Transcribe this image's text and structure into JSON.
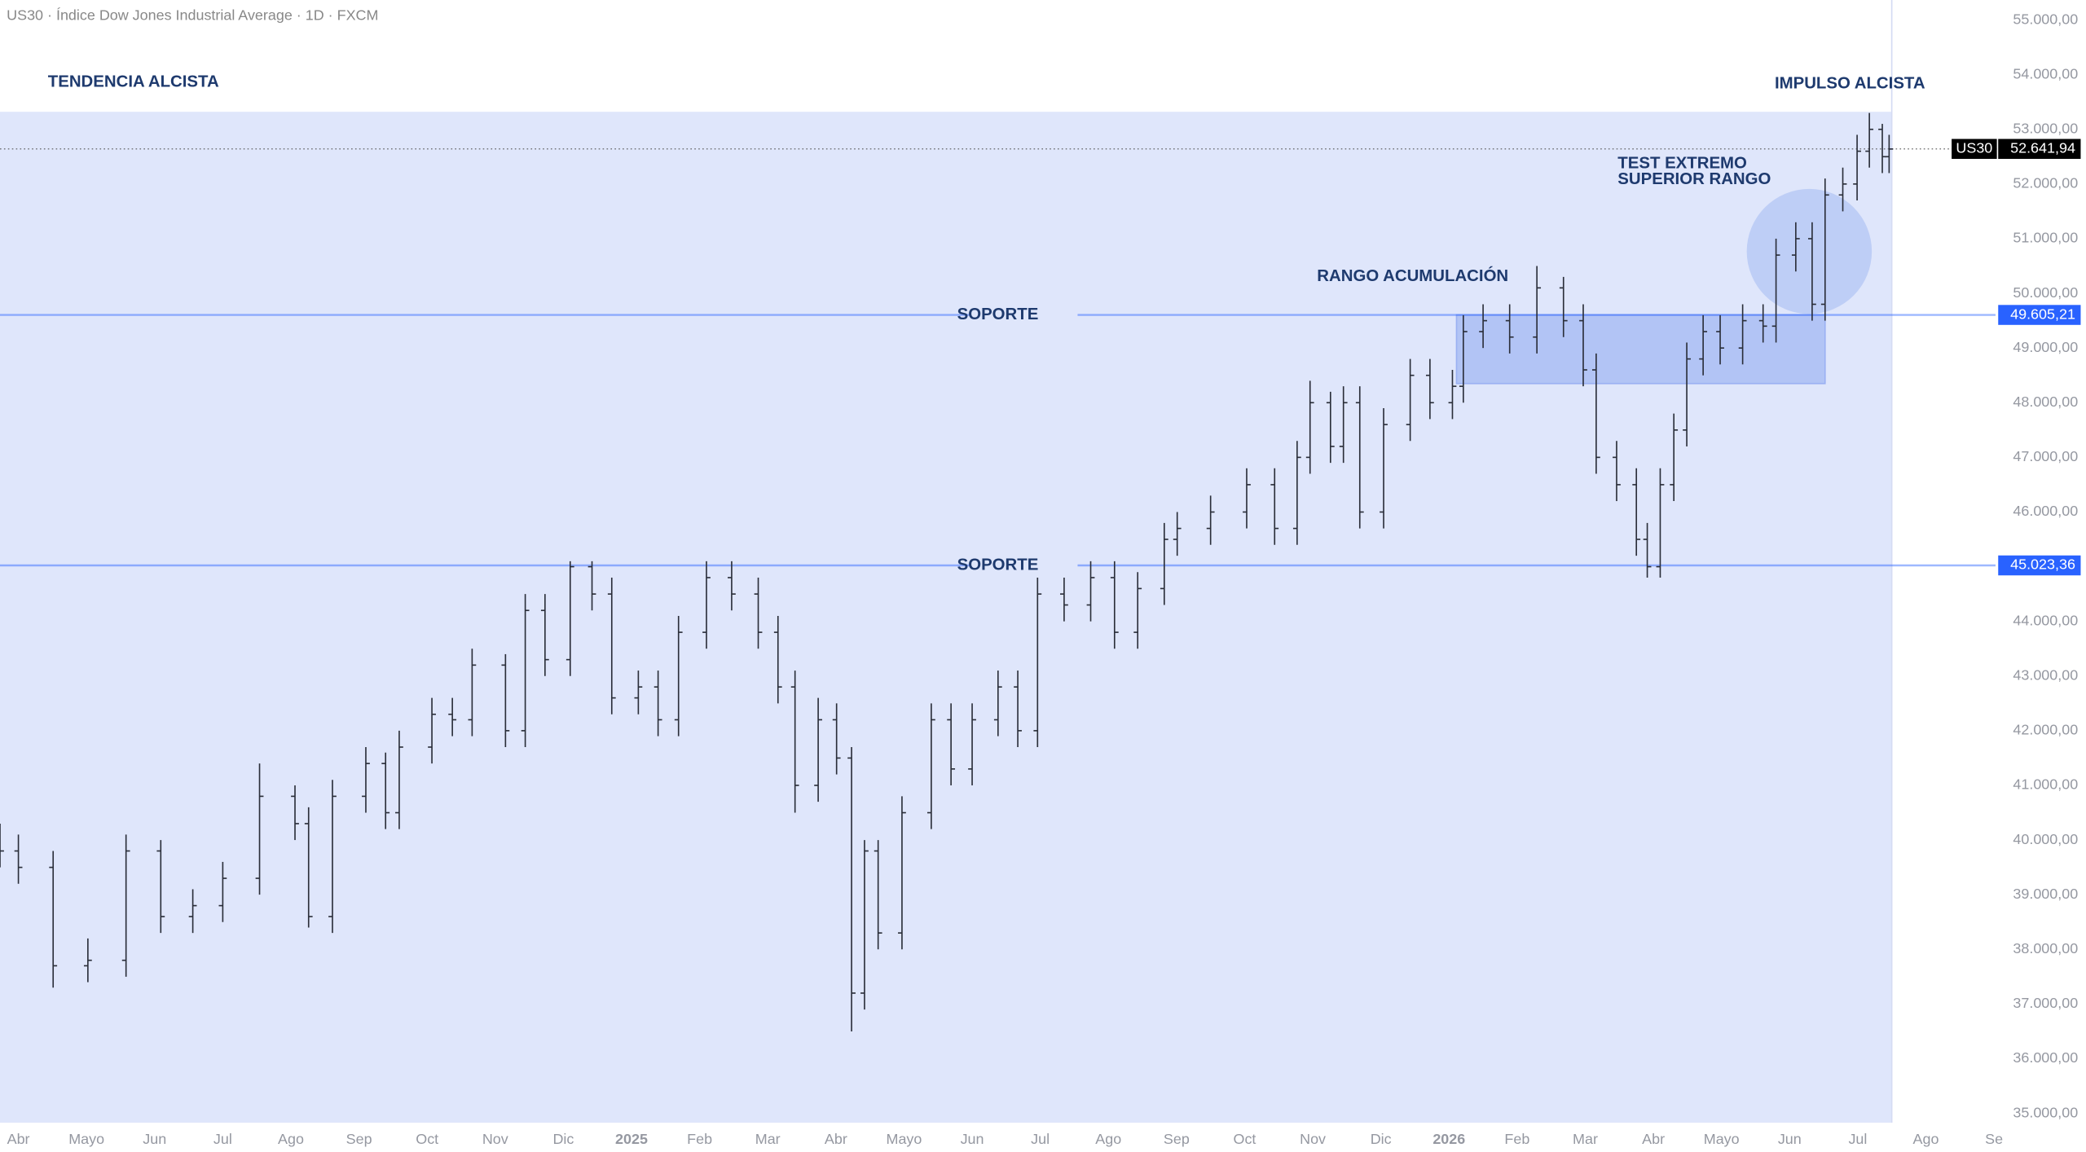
{
  "chart_data": {
    "type": "ohlc",
    "title": "US30 · Índice Dow Jones Industrial Average · 1D · FXCM",
    "color": "#2a2e39",
    "annotations": [
      "TENDENCIA ALCISTA",
      "IMPULSO ALCISTA",
      "TEST EXTREMO",
      "SUPERIOR RANGO",
      "RANGO ACUMULACIÓN"
    ],
    "xlim": [
      -0.27,
      30.35
    ],
    "xticks": [
      {
        "value": 0,
        "label": "Abr"
      },
      {
        "value": 1,
        "label": "Mayo"
      },
      {
        "value": 2,
        "label": "Jun"
      },
      {
        "value": 3,
        "label": "Jul"
      },
      {
        "value": 4,
        "label": "Ago"
      },
      {
        "value": 5,
        "label": "Sep"
      },
      {
        "value": 6,
        "label": "Oct"
      },
      {
        "value": 7,
        "label": "Nov"
      },
      {
        "value": 8,
        "label": "Dic"
      },
      {
        "value": 9,
        "label": "2025"
      },
      {
        "value": 10,
        "label": "Feb"
      },
      {
        "value": 11,
        "label": "Mar"
      },
      {
        "value": 12,
        "label": "Abr"
      },
      {
        "value": 13,
        "label": "Mayo"
      },
      {
        "value": 14,
        "label": "Jun"
      },
      {
        "value": 15,
        "label": "Jul"
      },
      {
        "value": 16,
        "label": "Ago"
      },
      {
        "value": 17,
        "label": "Sep"
      },
      {
        "value": 18,
        "label": "Oct"
      },
      {
        "value": 19,
        "label": "Nov"
      },
      {
        "value": 20,
        "label": "Dic"
      },
      {
        "value": 21,
        "label": "2026"
      },
      {
        "value": 22,
        "label": "Feb"
      },
      {
        "value": 23,
        "label": "Mar"
      },
      {
        "value": 24,
        "label": "Abr"
      },
      {
        "value": 25,
        "label": "Mayo"
      },
      {
        "value": 26,
        "label": "Jun"
      },
      {
        "value": 27,
        "label": "Jul"
      },
      {
        "value": 28,
        "label": "Ago"
      },
      {
        "value": 29,
        "label": "Se"
      }
    ],
    "ylim": [
      35000,
      55000
    ],
    "yticks": [
      {
        "value": 35000,
        "label": "35.000,00"
      },
      {
        "value": 36000,
        "label": "36.000,00"
      },
      {
        "value": 37000,
        "label": "37.000,00"
      },
      {
        "value": 38000,
        "label": "38.000,00"
      },
      {
        "value": 39000,
        "label": "39.000,00"
      },
      {
        "value": 40000,
        "label": "40.000,00"
      },
      {
        "value": 41000,
        "label": "41.000,00"
      },
      {
        "value": 42000,
        "label": "42.000,00"
      },
      {
        "value": 43000,
        "label": "43.000,00"
      },
      {
        "value": 44000,
        "label": "44.000,00"
      },
      {
        "value": 45000,
        "label": "45.000,00"
      },
      {
        "value": 46000,
        "label": "46.000,00"
      },
      {
        "value": 47000,
        "label": "47.000,00"
      },
      {
        "value": 48000,
        "label": "48.000,00"
      },
      {
        "value": 49000,
        "label": "49.000,00"
      },
      {
        "value": 50000,
        "label": "50.000,00"
      },
      {
        "value": 51000,
        "label": "51.000,00"
      },
      {
        "value": 52000,
        "label": "52.000,00"
      },
      {
        "value": 53000,
        "label": "53.000,00"
      },
      {
        "value": 54000,
        "label": "54.000,00"
      },
      {
        "value": 55000,
        "label": "55.000,00"
      }
    ],
    "current_price": {
      "name": "US30",
      "value": 52641.94,
      "value_label": "52.641,94"
    },
    "levels": [
      {
        "name": "SOPORTE",
        "value": 49605.21,
        "value_label": "49.605,21",
        "color": "#2962ff"
      },
      {
        "name": "SOPORTE",
        "value": 45023.36,
        "value_label": "45.023,36",
        "color": "#2962ff"
      }
    ],
    "range_zone": {
      "x": [
        21.11,
        26.52
      ],
      "y": [
        48350,
        49605.21
      ]
    },
    "x": [
      -0.27,
      0,
      0.51,
      1.02,
      1.58,
      2.09,
      2.56,
      3,
      3.54,
      4.06,
      4.26,
      4.61,
      5.1,
      5.39,
      5.59,
      6.07,
      6.37,
      6.66,
      7.15,
      7.44,
      7.73,
      8.1,
      8.42,
      8.71,
      9.1,
      9.39,
      9.69,
      10.1,
      10.47,
      10.86,
      11.15,
      11.4,
      11.74,
      12.01,
      12.23,
      12.42,
      12.62,
      12.97,
      13.4,
      13.69,
      14,
      14.38,
      14.67,
      14.96,
      15.35,
      15.74,
      16.09,
      16.43,
      16.82,
      17.01,
      17.5,
      18.03,
      18.44,
      18.77,
      18.96,
      19.26,
      19.45,
      19.69,
      20.04,
      20.43,
      20.72,
      21.05,
      21.21,
      21.5,
      21.89,
      22.29,
      22.68,
      22.97,
      23.16,
      23.46,
      23.75,
      23.91,
      24.1,
      24.3,
      24.49,
      24.73,
      24.98,
      25.31,
      25.61,
      25.8,
      26.09,
      26.33,
      26.52,
      26.78,
      26.99,
      27.17,
      27.36,
      27.46
    ],
    "open": [
      40000,
      39800,
      39500,
      37700,
      37800,
      39800,
      38600,
      38800,
      39300,
      40800,
      40300,
      38600,
      40800,
      41400,
      40500,
      41700,
      42300,
      42200,
      43200,
      42000,
      44200,
      43300,
      45000,
      44500,
      42600,
      42800,
      42200,
      43800,
      44800,
      44500,
      43800,
      42800,
      41000,
      42200,
      41500,
      37200,
      39800,
      38300,
      40500,
      42200,
      41300,
      42200,
      42800,
      42000,
      44500,
      44300,
      44800,
      43800,
      44600,
      45500,
      45700,
      46000,
      46500,
      45700,
      47000,
      48000,
      47200,
      48000,
      46000,
      47600,
      48500,
      48000,
      48300,
      49300,
      49500,
      49200,
      50100,
      49500,
      48600,
      47000,
      46500,
      45500,
      45000,
      46500,
      47500,
      48800,
      49300,
      49000,
      49500,
      49400,
      50700,
      51000,
      49800,
      51800,
      52000,
      52600,
      53000,
      52500
    ],
    "high": [
      40300,
      40100,
      39800,
      38200,
      40100,
      40000,
      39100,
      39600,
      41400,
      41000,
      40600,
      41100,
      41700,
      41600,
      42000,
      42600,
      42600,
      43500,
      43400,
      44500,
      44500,
      45100,
      45100,
      44800,
      43100,
      43100,
      44100,
      45100,
      45100,
      44800,
      44100,
      43100,
      42600,
      42500,
      41700,
      40000,
      40000,
      40800,
      42500,
      42500,
      42500,
      43100,
      43100,
      44800,
      44800,
      45100,
      45100,
      44900,
      45800,
      46000,
      46300,
      46800,
      46800,
      47300,
      48400,
      48200,
      48300,
      48300,
      47900,
      48800,
      48800,
      48600,
      49600,
      49800,
      49800,
      50500,
      50300,
      49800,
      48900,
      47300,
      46800,
      45800,
      46800,
      47800,
      49100,
      49600,
      49600,
      49800,
      49800,
      51000,
      51300,
      51300,
      52100,
      52300,
      52900,
      53300,
      53100,
      52900
    ],
    "low": [
      39500,
      39200,
      37300,
      37400,
      37500,
      38300,
      38300,
      38500,
      39000,
      40000,
      38400,
      38300,
      40500,
      40200,
      40200,
      41400,
      41900,
      41900,
      41700,
      41700,
      43000,
      43000,
      44200,
      42300,
      42300,
      41900,
      41900,
      43500,
      44200,
      43500,
      42500,
      40500,
      40700,
      41200,
      36500,
      36900,
      38000,
      38000,
      40200,
      41000,
      41000,
      41900,
      41700,
      41700,
      44000,
      44000,
      43500,
      43500,
      44300,
      45200,
      45400,
      45700,
      45400,
      45400,
      46700,
      46900,
      46900,
      45700,
      45700,
      47300,
      47700,
      47700,
      48000,
      49000,
      48900,
      48900,
      49200,
      48300,
      46700,
      46200,
      45200,
      44800,
      44800,
      46200,
      47200,
      48500,
      48700,
      48700,
      49100,
      49100,
      50400,
      49500,
      49500,
      51500,
      51700,
      52300,
      52200,
      52200
    ],
    "close": [
      39800,
      39500,
      37700,
      37800,
      39800,
      38600,
      38800,
      39300,
      40800,
      40300,
      38600,
      40800,
      41400,
      40500,
      41700,
      42300,
      42200,
      43200,
      42000,
      44200,
      43300,
      45000,
      44500,
      42600,
      42800,
      42200,
      43800,
      44800,
      44500,
      43800,
      42800,
      41000,
      42200,
      41500,
      37200,
      39800,
      38300,
      40500,
      42200,
      41300,
      42200,
      42800,
      42000,
      44500,
      44300,
      44800,
      43800,
      44600,
      45500,
      45700,
      46000,
      46500,
      45700,
      47000,
      48000,
      47200,
      48000,
      46000,
      47600,
      48500,
      48000,
      48300,
      49300,
      49500,
      49200,
      50100,
      49500,
      48600,
      47000,
      46500,
      45500,
      45000,
      46500,
      47500,
      48800,
      49300,
      49000,
      49500,
      49400,
      50700,
      51000,
      49800,
      51800,
      52000,
      52600,
      53000,
      52500,
      52640
    ]
  }
}
